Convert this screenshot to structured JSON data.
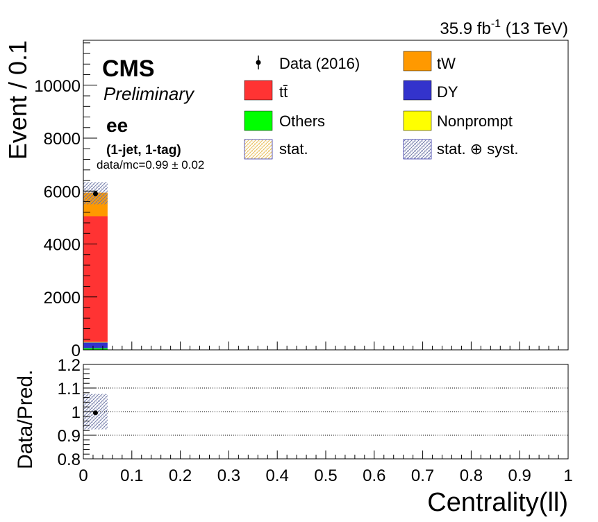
{
  "header": {
    "lumi_value": "35.9 fb",
    "lumi_exp": "-1",
    "energy": " (13 TeV)",
    "experiment": "CMS",
    "status": "Preliminary",
    "channel": "ee",
    "category": "(1-jet, 1-tag)",
    "ratio_text": "data/mc=0.99 ± 0.02"
  },
  "legend": {
    "data": "Data (2016)",
    "ttbar": "tt̄",
    "others": "Others",
    "stat": "stat.",
    "tw": "tW",
    "dy": "DY",
    "nonprompt": "Nonprompt",
    "stat_syst": "stat. ⊕ syst."
  },
  "colors": {
    "ttbar": "#ff3333",
    "tw": "#ff9900",
    "dy": "#3333cc",
    "others": "#00ff00",
    "nonprompt": "#ffff00",
    "stat_hatch": "#e6b84d",
    "syst_hatch": "#6670a0"
  },
  "chart_data": [
    {
      "type": "bar",
      "stacked": true,
      "ylabel": "Event / 0.1",
      "ylim": [
        0,
        11700
      ],
      "yticks": [
        "0",
        "2000",
        "4000",
        "6000",
        "8000",
        "10000"
      ],
      "bins": [
        [
          0.0,
          0.05
        ]
      ],
      "series": [
        {
          "name": "Others",
          "values": [
            60
          ]
        },
        {
          "name": "DY",
          "values": [
            220
          ]
        },
        {
          "name": "Nonprompt",
          "values": [
            20
          ]
        },
        {
          "name": "tt̄",
          "values": [
            4750
          ]
        },
        {
          "name": "tW",
          "values": [
            890
          ]
        }
      ],
      "data": {
        "name": "Data (2016)",
        "x": [
          0.025
        ],
        "y": [
          5900
        ]
      },
      "syst_band": [
        [
          5500,
          6340
        ]
      ],
      "legend_position": "top"
    },
    {
      "type": "scatter",
      "ylabel": "Data/Pred.",
      "xlabel": "Centrality(ll)",
      "xlim": [
        0,
        1
      ],
      "ylim": [
        0.8,
        1.2
      ],
      "yticks": [
        "0.8",
        "0.9",
        "1",
        "1.1",
        "1.2"
      ],
      "xticks": [
        "0",
        "0.1",
        "0.2",
        "0.3",
        "0.4",
        "0.5",
        "0.6",
        "0.7",
        "0.8",
        "0.9",
        "1"
      ],
      "gridlines": [
        0.9,
        1.0,
        1.1
      ],
      "x": [
        0.025
      ],
      "y": [
        0.995
      ],
      "band": [
        [
          0.925,
          1.075
        ]
      ]
    }
  ]
}
